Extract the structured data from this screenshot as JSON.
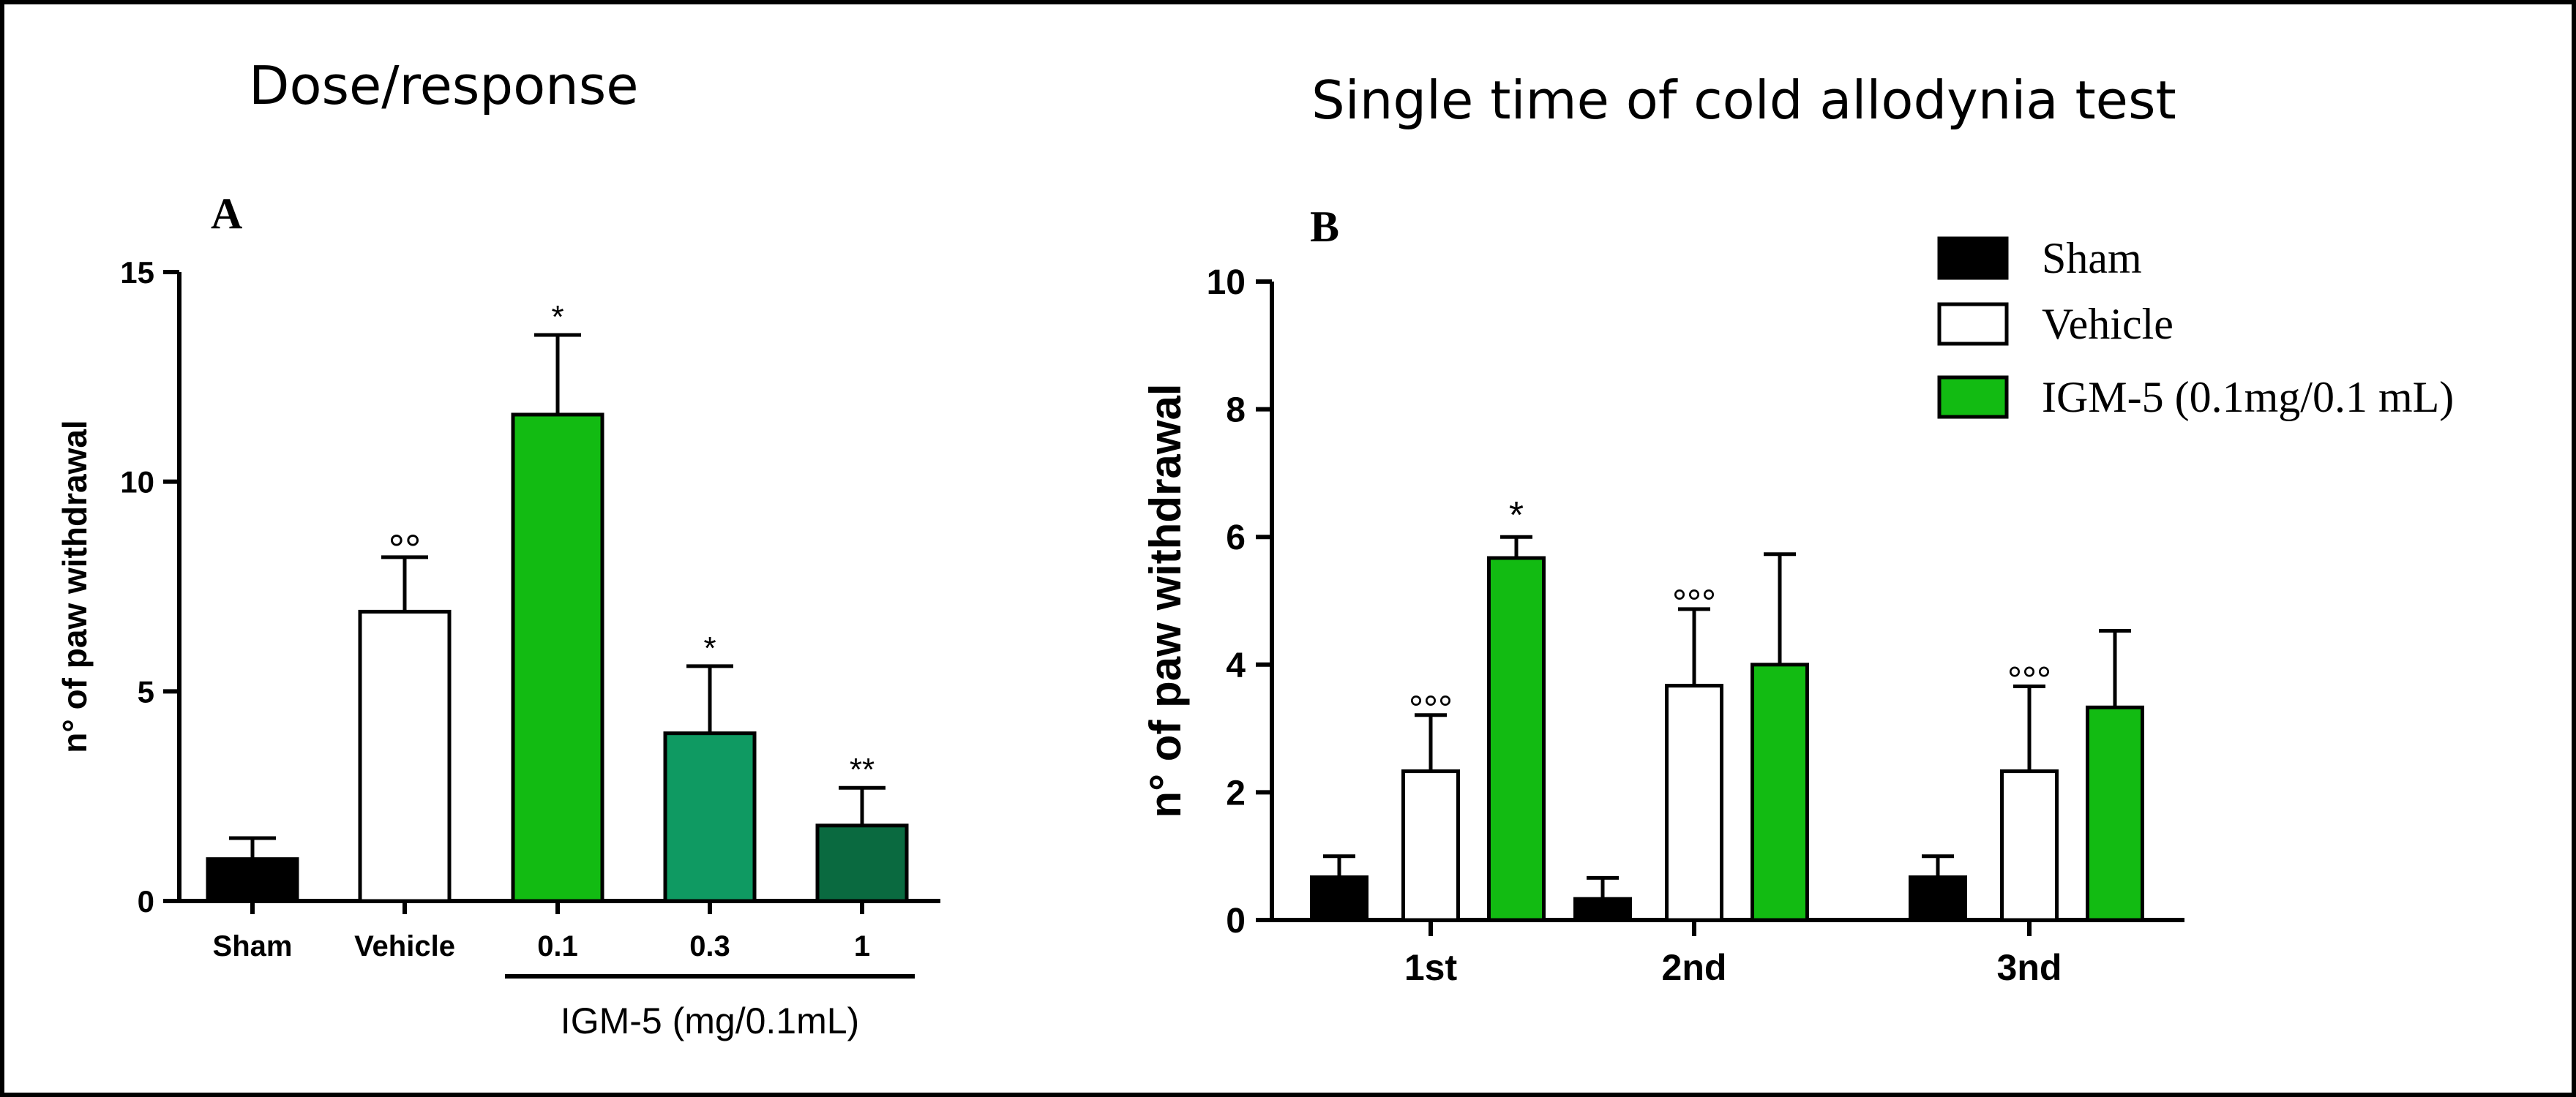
{
  "headings": {
    "left": "Dose/response",
    "right": "Single time of cold allodynia test"
  },
  "colors": {
    "sham": "#000000",
    "vehicle": "#ffffff",
    "igm_0_1": "#12bb12",
    "igm_0_3": "#0f9a62",
    "igm_1": "#0a6a40"
  },
  "chart_data": [
    {
      "panel": "A",
      "type": "bar",
      "title": "",
      "ylabel": "n° of paw withdrawal",
      "xlabel": "",
      "ylim": [
        0,
        15
      ],
      "yticks": [
        0,
        5,
        10,
        15
      ],
      "categories": [
        "Sham",
        "Vehicle",
        "0.1",
        "0.3",
        "1"
      ],
      "values": [
        1.0,
        6.9,
        11.6,
        4.0,
        1.8
      ],
      "errors": [
        0.5,
        1.3,
        1.9,
        1.6,
        0.9
      ],
      "significance": [
        "",
        "°°",
        "*",
        "*",
        "**"
      ],
      "group_label": "IGM-5 (mg/0.1mL)",
      "grid": false
    },
    {
      "panel": "B",
      "type": "bar",
      "title": "",
      "ylabel": "n° of paw withdrawal",
      "xlabel": "",
      "ylim": [
        0,
        10
      ],
      "yticks": [
        0,
        2,
        4,
        6,
        8,
        10
      ],
      "categories": [
        "1st",
        "2nd",
        "3nd"
      ],
      "series": [
        {
          "name": "Sham",
          "values": [
            0.67,
            0.33,
            0.67
          ],
          "errors": [
            0.33,
            0.33,
            0.33
          ],
          "significance": [
            "",
            "",
            ""
          ]
        },
        {
          "name": "Vehicle",
          "values": [
            2.33,
            3.67,
            2.33
          ],
          "errors": [
            0.88,
            1.2,
            1.33
          ],
          "significance": [
            "°°°",
            "°°°",
            "°°°"
          ]
        },
        {
          "name": "IGM-5 (0.1mg/0.1 mL)",
          "values": [
            5.67,
            4.0,
            3.33
          ],
          "errors": [
            0.33,
            1.73,
            1.2
          ],
          "significance": [
            "*",
            "",
            ""
          ]
        }
      ],
      "legend": "top-right",
      "grid": false
    }
  ]
}
